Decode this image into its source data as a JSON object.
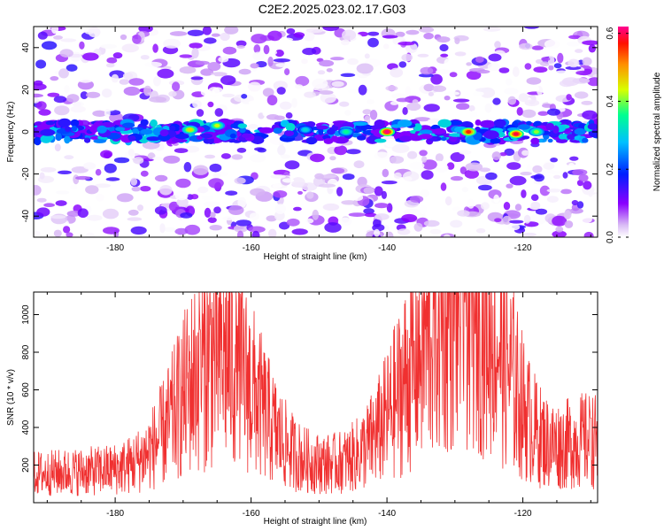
{
  "figure": {
    "title": "C2E2.2025.023.02.17.G03"
  },
  "chart_data": [
    {
      "type": "heatmap",
      "xlabel": "Height of straight line (km)",
      "ylabel": "Frequency (Hz)",
      "xlim": [
        -192,
        -109
      ],
      "ylim": [
        -50,
        50
      ],
      "x_ticks": [
        -180,
        -160,
        -140,
        -120
      ],
      "y_ticks": [
        -40,
        -20,
        0,
        20,
        40
      ],
      "colorbar": {
        "label": "Normalized spectral amplitude",
        "range": [
          0,
          0.62
        ],
        "ticks": [
          "0.0",
          "0.2",
          "0.4",
          "0.6"
        ],
        "colormap": [
          "#ffffff",
          "#c8a0f0",
          "#8000ff",
          "#0000ff",
          "#00c8ff",
          "#00ff80",
          "#ffff00",
          "#ff8000",
          "#ff0000",
          "#ff00a0"
        ]
      },
      "band_center_hz": 0,
      "hotspots": [
        {
          "x": -169,
          "y": 1,
          "value": 0.45
        },
        {
          "x": -165,
          "y": 3,
          "value": 0.42
        },
        {
          "x": -152,
          "y": 1,
          "value": 0.3
        },
        {
          "x": -146,
          "y": 0,
          "value": 0.35
        },
        {
          "x": -140,
          "y": 0,
          "value": 0.6
        },
        {
          "x": -128,
          "y": 0,
          "value": 0.55
        },
        {
          "x": -121,
          "y": -1,
          "value": 0.58
        },
        {
          "x": -118,
          "y": 0,
          "value": 0.4
        }
      ]
    },
    {
      "type": "line",
      "xlabel": "Height of straight line (km)",
      "ylabel": "SNR (10 * v/v)",
      "xlim": [
        -192,
        -109
      ],
      "ylim": [
        0,
        1120
      ],
      "x_ticks": [
        -180,
        -160,
        -140,
        -120
      ],
      "y_ticks": [
        200,
        400,
        600,
        800,
        1000
      ],
      "color": "#f03030",
      "baseline": 220,
      "peaks": [
        {
          "x": -167.5,
          "y": 920
        },
        {
          "x": -162.0,
          "y": 940
        },
        {
          "x": -136.0,
          "y": 860
        },
        {
          "x": -130.0,
          "y": 1120
        },
        {
          "x": -127.0,
          "y": 900
        },
        {
          "x": -124.0,
          "y": 720
        },
        {
          "x": -110.0,
          "y": 450
        }
      ]
    }
  ]
}
